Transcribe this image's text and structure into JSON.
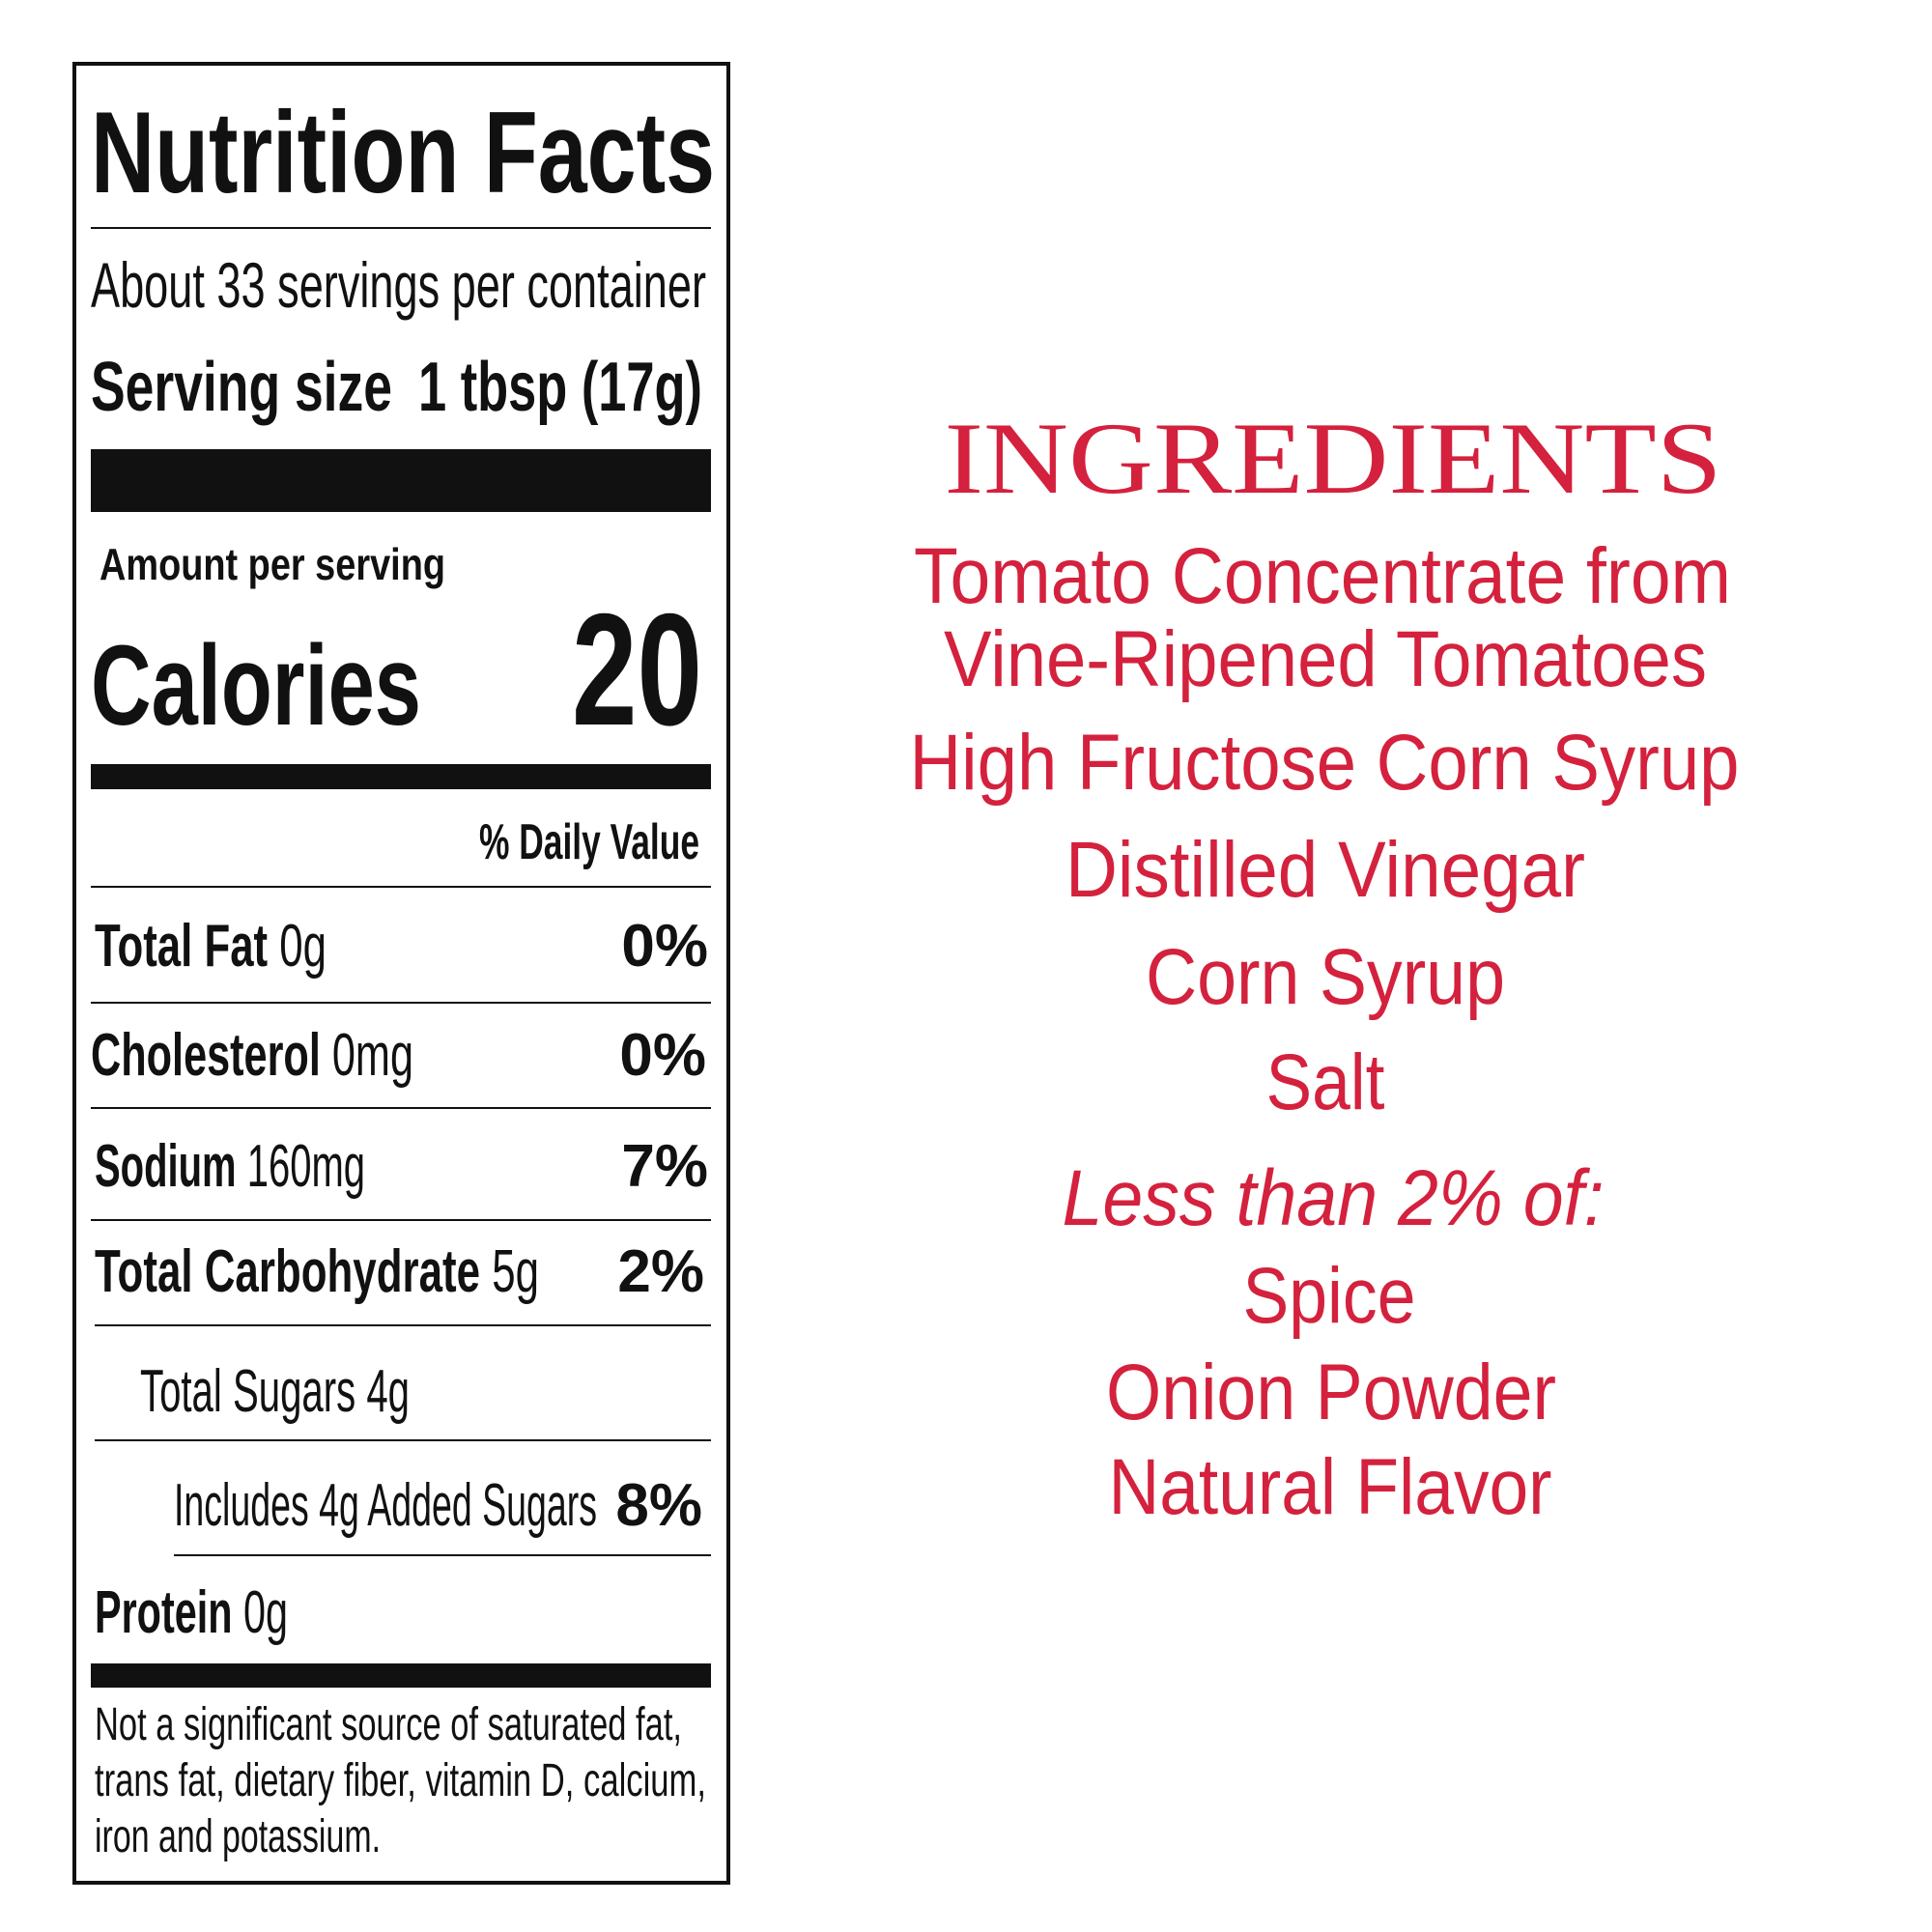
{
  "nutrition_facts": {
    "title": "Nutrition Facts",
    "servings": "About 33 servings per container",
    "serving_size_label": "Serving size",
    "serving_size_value": "1 tbsp (17g)",
    "amount_per_serving": "Amount per serving",
    "calories_label": "Calories",
    "calories_value": "20",
    "daily_value_header": "% Daily Value",
    "rows": [
      {
        "name": "Total Fat",
        "amount": "0g",
        "dv": "0%"
      },
      {
        "name": "Cholesterol",
        "amount": "0mg",
        "dv": "0%"
      },
      {
        "name": "Sodium",
        "amount": "160mg",
        "dv": "7%"
      },
      {
        "name": "Total Carbohydrate",
        "amount": "5g",
        "dv": "2%"
      },
      {
        "name": "Total Sugars",
        "amount": "4g"
      },
      {
        "name": "Includes 4g Added Sugars",
        "dv": "8%"
      },
      {
        "name": "Protein",
        "amount": "0g"
      }
    ],
    "footnote": [
      "Not a significant source of saturated fat,",
      "trans fat, dietary fiber, vitamin D, calcium,",
      "iron and potassium."
    ]
  },
  "ingredients": {
    "title": "INGREDIENTS",
    "items": [
      "Tomato Concentrate from",
      "Vine-Ripened Tomatoes",
      "High Fructose Corn Syrup",
      "Distilled Vinegar",
      "Corn Syrup",
      "Salt",
      "Less than 2% of:",
      "Spice",
      "Onion Powder",
      "Natural Flavor"
    ]
  }
}
